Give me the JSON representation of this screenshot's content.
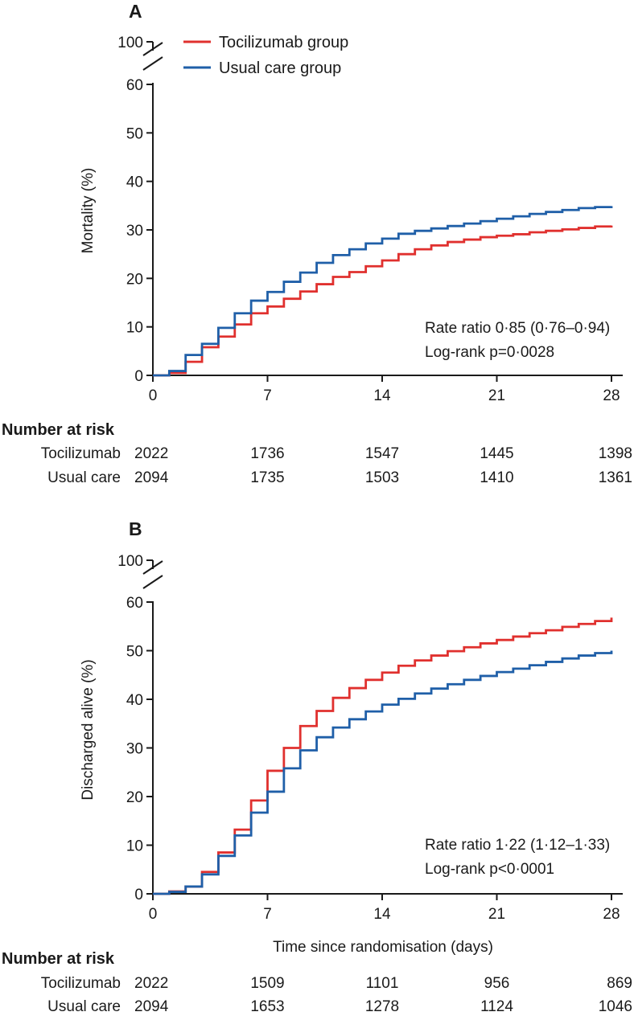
{
  "colors": {
    "tocilizumab": "#e0302e",
    "usual_care": "#1f5fa8",
    "axis": "#1a1a1a"
  },
  "chart_data": [
    {
      "type": "line",
      "panel_label": "A",
      "xlabel": "",
      "ylabel": "Mortality (%)",
      "x_ticks": [
        0,
        7,
        14,
        21,
        28
      ],
      "x_tick_labels": [
        "0",
        "7",
        "14",
        "21",
        "28"
      ],
      "y_ticks": [
        0,
        10,
        20,
        30,
        40,
        50,
        60
      ],
      "y_tick_labels": [
        "0",
        "10",
        "20",
        "30",
        "40",
        "50",
        "60"
      ],
      "y_break_label": "100",
      "xlim": [
        0,
        28
      ],
      "ylim": [
        0,
        60
      ],
      "legend": [
        "Tocilizumab group",
        "Usual care group"
      ],
      "annotation": [
        "Rate ratio 0·85 (0·76–0·94)",
        "Log-rank p=0·0028"
      ],
      "series": [
        {
          "name": "Tocilizumab group",
          "color_key": "tocilizumab",
          "step": true,
          "x": [
            0,
            1,
            2,
            3,
            4,
            5,
            6,
            7,
            8,
            9,
            10,
            11,
            12,
            13,
            14,
            15,
            16,
            17,
            18,
            19,
            20,
            21,
            22,
            23,
            24,
            25,
            26,
            27,
            28
          ],
          "y": [
            0,
            0.5,
            2.8,
            5.8,
            8.0,
            10.5,
            12.8,
            14.2,
            15.8,
            17.3,
            18.8,
            20.3,
            21.3,
            22.5,
            23.7,
            25.0,
            26.0,
            26.8,
            27.5,
            28.0,
            28.5,
            28.8,
            29.1,
            29.5,
            29.8,
            30.1,
            30.4,
            30.7,
            30.9
          ]
        },
        {
          "name": "Usual care group",
          "color_key": "usual_care",
          "step": true,
          "x": [
            0,
            1,
            2,
            3,
            4,
            5,
            6,
            7,
            8,
            9,
            10,
            11,
            12,
            13,
            14,
            15,
            16,
            17,
            18,
            19,
            20,
            21,
            22,
            23,
            24,
            25,
            26,
            27,
            28
          ],
          "y": [
            0,
            0.9,
            4.2,
            6.5,
            9.8,
            12.8,
            15.4,
            17.2,
            19.3,
            21.2,
            23.2,
            24.8,
            26.0,
            27.2,
            28.2,
            29.2,
            29.8,
            30.3,
            30.8,
            31.3,
            31.8,
            32.3,
            32.8,
            33.3,
            33.7,
            34.1,
            34.5,
            34.7,
            34.9
          ]
        }
      ],
      "risk_table": {
        "header": "Number at risk",
        "timepoints": [
          0,
          7,
          14,
          21,
          28
        ],
        "rows": [
          {
            "label": "Tocilizumab",
            "values": [
              "2022",
              "1736",
              "1547",
              "1445",
              "1398"
            ]
          },
          {
            "label": "Usual care",
            "values": [
              "2094",
              "1735",
              "1503",
              "1410",
              "1361"
            ]
          }
        ]
      }
    },
    {
      "type": "line",
      "panel_label": "B",
      "xlabel": "Time since randomisation (days)",
      "ylabel": "Discharged alive (%)",
      "x_ticks": [
        0,
        7,
        14,
        21,
        28
      ],
      "x_tick_labels": [
        "0",
        "7",
        "14",
        "21",
        "28"
      ],
      "y_ticks": [
        0,
        10,
        20,
        30,
        40,
        50,
        60
      ],
      "y_tick_labels": [
        "0",
        "10",
        "20",
        "30",
        "40",
        "50",
        "60"
      ],
      "y_break_label": "100",
      "xlim": [
        0,
        28
      ],
      "ylim": [
        0,
        60
      ],
      "annotation": [
        "Rate ratio 1·22 (1·12–1·33)",
        "Log-rank p<0·0001"
      ],
      "series": [
        {
          "name": "Tocilizumab group",
          "color_key": "tocilizumab",
          "step": true,
          "x": [
            0,
            1,
            2,
            3,
            4,
            5,
            6,
            7,
            8,
            9,
            10,
            11,
            12,
            13,
            14,
            15,
            16,
            17,
            18,
            19,
            20,
            21,
            22,
            23,
            24,
            25,
            26,
            27,
            28
          ],
          "y": [
            0,
            0.5,
            1.5,
            4.5,
            8.5,
            13.2,
            19.2,
            25.3,
            30.0,
            34.5,
            37.6,
            40.3,
            42.3,
            44.0,
            45.5,
            46.9,
            48.0,
            49.0,
            49.9,
            50.7,
            51.5,
            52.2,
            52.9,
            53.6,
            54.2,
            54.9,
            55.5,
            56.1,
            56.8
          ]
        },
        {
          "name": "Usual care group",
          "color_key": "usual_care",
          "step": true,
          "x": [
            0,
            1,
            2,
            3,
            4,
            5,
            6,
            7,
            8,
            9,
            10,
            11,
            12,
            13,
            14,
            15,
            16,
            17,
            18,
            19,
            20,
            21,
            22,
            23,
            24,
            25,
            26,
            27,
            28
          ],
          "y": [
            0,
            0.4,
            1.5,
            4.0,
            7.8,
            12.0,
            16.7,
            21.0,
            25.8,
            29.5,
            32.2,
            34.2,
            35.9,
            37.5,
            38.9,
            40.1,
            41.2,
            42.2,
            43.1,
            44.0,
            44.8,
            45.6,
            46.3,
            47.0,
            47.7,
            48.4,
            49.0,
            49.5,
            50.0
          ]
        }
      ],
      "risk_table": {
        "header": "Number at risk",
        "timepoints": [
          0,
          7,
          14,
          21,
          28
        ],
        "rows": [
          {
            "label": "Tocilizumab",
            "values": [
              "2022",
              "1509",
              "1101",
              "956",
              "869"
            ]
          },
          {
            "label": "Usual care",
            "values": [
              "2094",
              "1653",
              "1278",
              "1124",
              "1046"
            ]
          }
        ]
      }
    }
  ]
}
